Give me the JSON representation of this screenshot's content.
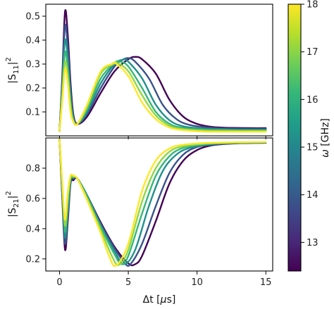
{
  "chart_data": [
    {
      "type": "line",
      "panel": "top",
      "ylabel": "|S11|²",
      "ylabel_main": "|S",
      "ylabel_sub": "11",
      "ylabel_sup": "2",
      "xlim": [
        -1,
        15.5
      ],
      "ylim": [
        0.0,
        0.55
      ],
      "yticks": [
        0.1,
        0.2,
        0.3,
        0.4,
        0.5
      ],
      "ytick_labels": [
        "0.1",
        "0.2",
        "0.3",
        "0.4",
        "0.5"
      ],
      "xticks": [
        0,
        5,
        10,
        15
      ],
      "series": [
        {
          "omega": 12.5,
          "color": "#440154",
          "x": [
            0,
            0.2,
            0.4,
            0.6,
            0.8,
            1.0,
            1.3,
            2.0,
            3.0,
            4.0,
            5.0,
            5.5,
            6.0,
            7.0,
            8.0,
            9.0,
            10.0,
            11.0,
            12.0,
            13.0,
            14.0,
            15.0
          ],
          "y": [
            0.02,
            0.25,
            0.52,
            0.42,
            0.22,
            0.09,
            0.05,
            0.08,
            0.18,
            0.27,
            0.32,
            0.33,
            0.32,
            0.26,
            0.15,
            0.08,
            0.05,
            0.038,
            0.034,
            0.033,
            0.032,
            0.032
          ]
        },
        {
          "omega": 13.5,
          "color": "#3b528b",
          "x": [
            0,
            0.2,
            0.4,
            0.6,
            0.8,
            1.0,
            1.3,
            2.0,
            3.0,
            4.0,
            4.5,
            5.0,
            5.5,
            6.5,
            7.5,
            8.5,
            9.5,
            11.0,
            12.0,
            13.0,
            14.0,
            15.0
          ],
          "y": [
            0.02,
            0.23,
            0.46,
            0.37,
            0.19,
            0.08,
            0.05,
            0.09,
            0.2,
            0.29,
            0.315,
            0.325,
            0.31,
            0.24,
            0.13,
            0.07,
            0.045,
            0.034,
            0.031,
            0.03,
            0.029,
            0.029
          ]
        },
        {
          "omega": 14.5,
          "color": "#21918c",
          "x": [
            0,
            0.2,
            0.4,
            0.6,
            0.8,
            1.0,
            1.3,
            2.0,
            3.0,
            4.0,
            4.6,
            5.0,
            6.0,
            7.0,
            8.0,
            9.0,
            10.5,
            12.0,
            13.0,
            14.0,
            15.0
          ],
          "y": [
            0.02,
            0.21,
            0.4,
            0.32,
            0.16,
            0.07,
            0.05,
            0.1,
            0.22,
            0.3,
            0.318,
            0.31,
            0.24,
            0.13,
            0.065,
            0.04,
            0.03,
            0.027,
            0.026,
            0.026,
            0.026
          ]
        },
        {
          "omega": 15.5,
          "color": "#35b779",
          "x": [
            0,
            0.2,
            0.4,
            0.6,
            0.8,
            1.0,
            1.3,
            2.0,
            3.0,
            4.0,
            4.4,
            5.0,
            6.0,
            7.0,
            8.0,
            9.0,
            10.5,
            12.0,
            13.0,
            14.0,
            15.0
          ],
          "y": [
            0.02,
            0.19,
            0.35,
            0.28,
            0.14,
            0.07,
            0.05,
            0.11,
            0.24,
            0.305,
            0.31,
            0.29,
            0.2,
            0.1,
            0.05,
            0.033,
            0.026,
            0.024,
            0.023,
            0.023,
            0.023
          ]
        },
        {
          "omega": 16.5,
          "color": "#90d743",
          "x": [
            0,
            0.2,
            0.4,
            0.6,
            0.8,
            1.0,
            1.3,
            2.0,
            3.0,
            4.0,
            4.2,
            5.0,
            6.0,
            7.0,
            8.0,
            9.0,
            10.5,
            12.0,
            13.0,
            14.0,
            15.0
          ],
          "y": [
            0.02,
            0.17,
            0.31,
            0.25,
            0.12,
            0.06,
            0.05,
            0.12,
            0.26,
            0.303,
            0.305,
            0.27,
            0.17,
            0.085,
            0.042,
            0.028,
            0.022,
            0.021,
            0.02,
            0.02,
            0.02
          ]
        },
        {
          "omega": 17.8,
          "color": "#fde725",
          "x": [
            0,
            0.2,
            0.4,
            0.6,
            0.8,
            1.0,
            1.3,
            2.0,
            3.0,
            3.8,
            4.1,
            5.0,
            6.0,
            7.0,
            8.0,
            9.0,
            10.5,
            12.0,
            13.0,
            14.0,
            15.0
          ],
          "y": [
            0.02,
            0.15,
            0.28,
            0.22,
            0.1,
            0.06,
            0.05,
            0.13,
            0.27,
            0.3,
            0.302,
            0.25,
            0.14,
            0.07,
            0.035,
            0.024,
            0.018,
            0.017,
            0.017,
            0.017,
            0.017
          ]
        }
      ]
    },
    {
      "type": "line",
      "panel": "bottom",
      "xlabel": "Δt [μs]",
      "xlabel_main": "Δt [",
      "xlabel_mu": "μ",
      "xlabel_rest": "s]",
      "ylabel": "|S21|²",
      "ylabel_main": "|S",
      "ylabel_sub": "21",
      "ylabel_sup": "2",
      "xlim": [
        -1,
        15.5
      ],
      "ylim": [
        0.12,
        1.0
      ],
      "xticks": [
        0,
        5,
        10,
        15
      ],
      "xtick_labels": [
        "0",
        "5",
        "10",
        "15"
      ],
      "yticks": [
        0.2,
        0.4,
        0.6,
        0.8
      ],
      "ytick_labels": [
        "0.2",
        "0.4",
        "0.6",
        "0.8"
      ],
      "series": [
        {
          "omega": 12.5,
          "color": "#440154",
          "x": [
            0,
            0.2,
            0.4,
            0.6,
            0.8,
            1.0,
            1.3,
            2.0,
            3.0,
            4.0,
            5.0,
            5.5,
            6.0,
            7.0,
            8.0,
            9.0,
            10.0,
            11.0,
            12.0,
            13.0,
            14.0,
            15.0
          ],
          "y": [
            0.99,
            0.6,
            0.26,
            0.45,
            0.7,
            0.72,
            0.73,
            0.62,
            0.44,
            0.28,
            0.17,
            0.165,
            0.22,
            0.45,
            0.7,
            0.85,
            0.92,
            0.95,
            0.96,
            0.965,
            0.967,
            0.968
          ]
        },
        {
          "omega": 13.5,
          "color": "#3b528b",
          "x": [
            0,
            0.2,
            0.4,
            0.6,
            0.8,
            1.0,
            1.3,
            2.0,
            3.0,
            4.0,
            4.8,
            5.2,
            6.0,
            7.0,
            8.0,
            9.0,
            10.0,
            11.0,
            12.0,
            13.0,
            14.0,
            15.0
          ],
          "y": [
            0.99,
            0.62,
            0.3,
            0.48,
            0.71,
            0.73,
            0.73,
            0.62,
            0.43,
            0.27,
            0.165,
            0.17,
            0.3,
            0.55,
            0.77,
            0.89,
            0.94,
            0.955,
            0.962,
            0.966,
            0.968,
            0.969
          ]
        },
        {
          "omega": 14.5,
          "color": "#21918c",
          "x": [
            0,
            0.2,
            0.4,
            0.6,
            0.8,
            1.0,
            1.3,
            2.0,
            3.0,
            4.0,
            4.7,
            5.5,
            6.5,
            7.5,
            8.5,
            9.5,
            11.0,
            12.0,
            13.0,
            14.0,
            15.0
          ],
          "y": [
            0.99,
            0.64,
            0.34,
            0.52,
            0.72,
            0.735,
            0.73,
            0.62,
            0.42,
            0.25,
            0.165,
            0.26,
            0.55,
            0.78,
            0.89,
            0.935,
            0.958,
            0.964,
            0.967,
            0.969,
            0.97
          ]
        },
        {
          "omega": 15.5,
          "color": "#35b779",
          "x": [
            0,
            0.2,
            0.4,
            0.6,
            0.8,
            1.0,
            1.3,
            2.0,
            3.0,
            4.0,
            4.5,
            5.0,
            6.0,
            7.0,
            8.0,
            9.0,
            10.5,
            12.0,
            13.0,
            14.0,
            15.0
          ],
          "y": [
            0.99,
            0.66,
            0.38,
            0.56,
            0.73,
            0.74,
            0.73,
            0.61,
            0.41,
            0.23,
            0.165,
            0.22,
            0.5,
            0.75,
            0.88,
            0.935,
            0.958,
            0.966,
            0.968,
            0.97,
            0.971
          ]
        },
        {
          "omega": 16.5,
          "color": "#90d743",
          "x": [
            0,
            0.2,
            0.4,
            0.6,
            0.8,
            1.0,
            1.3,
            2.0,
            3.0,
            3.8,
            4.3,
            5.0,
            6.0,
            7.0,
            8.0,
            9.0,
            10.5,
            12.0,
            13.0,
            14.0,
            15.0
          ],
          "y": [
            0.99,
            0.68,
            0.42,
            0.6,
            0.74,
            0.745,
            0.73,
            0.6,
            0.39,
            0.22,
            0.16,
            0.26,
            0.58,
            0.8,
            0.91,
            0.945,
            0.962,
            0.968,
            0.97,
            0.971,
            0.972
          ]
        },
        {
          "omega": 17.8,
          "color": "#fde725",
          "x": [
            0,
            0.2,
            0.4,
            0.6,
            0.8,
            1.0,
            1.3,
            2.0,
            3.0,
            3.6,
            4.1,
            5.0,
            6.0,
            7.0,
            8.0,
            9.0,
            10.5,
            12.0,
            13.0,
            14.0,
            15.0
          ],
          "y": [
            0.99,
            0.7,
            0.46,
            0.64,
            0.75,
            0.75,
            0.73,
            0.59,
            0.37,
            0.22,
            0.155,
            0.3,
            0.65,
            0.85,
            0.93,
            0.955,
            0.966,
            0.97,
            0.971,
            0.972,
            0.973
          ]
        }
      ]
    }
  ],
  "colorbar": {
    "label": "ω [GHz]",
    "label_omega": "ω",
    "label_unit": "[GHz]",
    "range": [
      12.4,
      18.0
    ],
    "ticks": [
      13,
      14,
      15,
      16,
      17,
      18
    ],
    "tick_labels": [
      "13",
      "14",
      "15",
      "16",
      "17",
      "18"
    ],
    "colormap": [
      "#440154",
      "#482878",
      "#3e4989",
      "#31688e",
      "#26828e",
      "#1f9e89",
      "#35b779",
      "#6ece58",
      "#b5de2b",
      "#fde725"
    ]
  }
}
